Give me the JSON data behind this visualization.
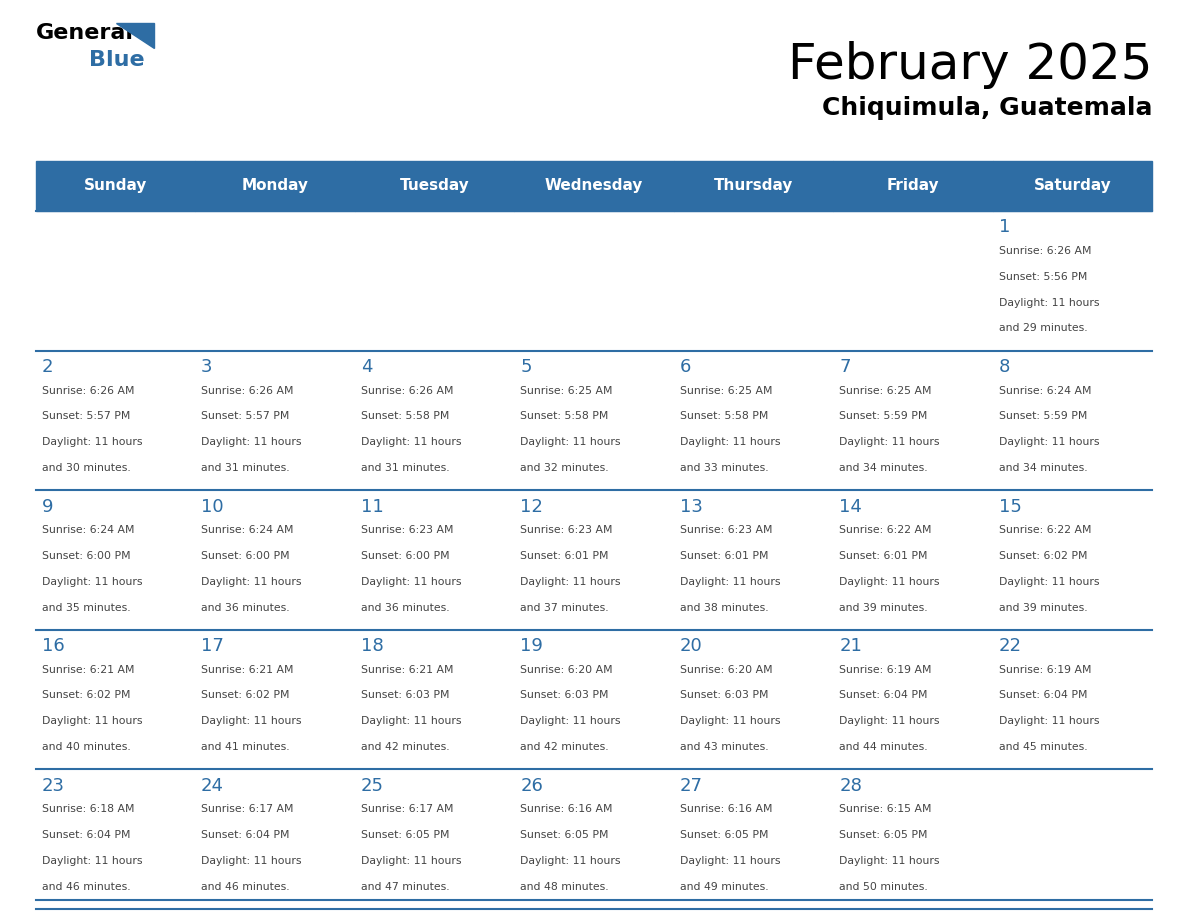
{
  "title": "February 2025",
  "subtitle": "Chiquimula, Guatemala",
  "header_bg": "#2E6DA4",
  "header_text_color": "#FFFFFF",
  "cell_bg_white": "#FFFFFF",
  "cell_bg_light": "#F0F4F8",
  "separator_color": "#2E6DA4",
  "day_number_color": "#2E6DA4",
  "info_text_color": "#444444",
  "days_of_week": [
    "Sunday",
    "Monday",
    "Tuesday",
    "Wednesday",
    "Thursday",
    "Friday",
    "Saturday"
  ],
  "weeks": [
    [
      {
        "day": null,
        "sunrise": null,
        "sunset": null,
        "daylight": null
      },
      {
        "day": null,
        "sunrise": null,
        "sunset": null,
        "daylight": null
      },
      {
        "day": null,
        "sunrise": null,
        "sunset": null,
        "daylight": null
      },
      {
        "day": null,
        "sunrise": null,
        "sunset": null,
        "daylight": null
      },
      {
        "day": null,
        "sunrise": null,
        "sunset": null,
        "daylight": null
      },
      {
        "day": null,
        "sunrise": null,
        "sunset": null,
        "daylight": null
      },
      {
        "day": 1,
        "sunrise": "6:26 AM",
        "sunset": "5:56 PM",
        "daylight": "11 hours and 29 minutes."
      }
    ],
    [
      {
        "day": 2,
        "sunrise": "6:26 AM",
        "sunset": "5:57 PM",
        "daylight": "11 hours and 30 minutes."
      },
      {
        "day": 3,
        "sunrise": "6:26 AM",
        "sunset": "5:57 PM",
        "daylight": "11 hours and 31 minutes."
      },
      {
        "day": 4,
        "sunrise": "6:26 AM",
        "sunset": "5:58 PM",
        "daylight": "11 hours and 31 minutes."
      },
      {
        "day": 5,
        "sunrise": "6:25 AM",
        "sunset": "5:58 PM",
        "daylight": "11 hours and 32 minutes."
      },
      {
        "day": 6,
        "sunrise": "6:25 AM",
        "sunset": "5:58 PM",
        "daylight": "11 hours and 33 minutes."
      },
      {
        "day": 7,
        "sunrise": "6:25 AM",
        "sunset": "5:59 PM",
        "daylight": "11 hours and 34 minutes."
      },
      {
        "day": 8,
        "sunrise": "6:24 AM",
        "sunset": "5:59 PM",
        "daylight": "11 hours and 34 minutes."
      }
    ],
    [
      {
        "day": 9,
        "sunrise": "6:24 AM",
        "sunset": "6:00 PM",
        "daylight": "11 hours and 35 minutes."
      },
      {
        "day": 10,
        "sunrise": "6:24 AM",
        "sunset": "6:00 PM",
        "daylight": "11 hours and 36 minutes."
      },
      {
        "day": 11,
        "sunrise": "6:23 AM",
        "sunset": "6:00 PM",
        "daylight": "11 hours and 36 minutes."
      },
      {
        "day": 12,
        "sunrise": "6:23 AM",
        "sunset": "6:01 PM",
        "daylight": "11 hours and 37 minutes."
      },
      {
        "day": 13,
        "sunrise": "6:23 AM",
        "sunset": "6:01 PM",
        "daylight": "11 hours and 38 minutes."
      },
      {
        "day": 14,
        "sunrise": "6:22 AM",
        "sunset": "6:01 PM",
        "daylight": "11 hours and 39 minutes."
      },
      {
        "day": 15,
        "sunrise": "6:22 AM",
        "sunset": "6:02 PM",
        "daylight": "11 hours and 39 minutes."
      }
    ],
    [
      {
        "day": 16,
        "sunrise": "6:21 AM",
        "sunset": "6:02 PM",
        "daylight": "11 hours and 40 minutes."
      },
      {
        "day": 17,
        "sunrise": "6:21 AM",
        "sunset": "6:02 PM",
        "daylight": "11 hours and 41 minutes."
      },
      {
        "day": 18,
        "sunrise": "6:21 AM",
        "sunset": "6:03 PM",
        "daylight": "11 hours and 42 minutes."
      },
      {
        "day": 19,
        "sunrise": "6:20 AM",
        "sunset": "6:03 PM",
        "daylight": "11 hours and 42 minutes."
      },
      {
        "day": 20,
        "sunrise": "6:20 AM",
        "sunset": "6:03 PM",
        "daylight": "11 hours and 43 minutes."
      },
      {
        "day": 21,
        "sunrise": "6:19 AM",
        "sunset": "6:04 PM",
        "daylight": "11 hours and 44 minutes."
      },
      {
        "day": 22,
        "sunrise": "6:19 AM",
        "sunset": "6:04 PM",
        "daylight": "11 hours and 45 minutes."
      }
    ],
    [
      {
        "day": 23,
        "sunrise": "6:18 AM",
        "sunset": "6:04 PM",
        "daylight": "11 hours and 46 minutes."
      },
      {
        "day": 24,
        "sunrise": "6:17 AM",
        "sunset": "6:04 PM",
        "daylight": "11 hours and 46 minutes."
      },
      {
        "day": 25,
        "sunrise": "6:17 AM",
        "sunset": "6:05 PM",
        "daylight": "11 hours and 47 minutes."
      },
      {
        "day": 26,
        "sunrise": "6:16 AM",
        "sunset": "6:05 PM",
        "daylight": "11 hours and 48 minutes."
      },
      {
        "day": 27,
        "sunrise": "6:16 AM",
        "sunset": "6:05 PM",
        "daylight": "11 hours and 49 minutes."
      },
      {
        "day": 28,
        "sunrise": "6:15 AM",
        "sunset": "6:05 PM",
        "daylight": "11 hours and 50 minutes."
      },
      {
        "day": null,
        "sunrise": null,
        "sunset": null,
        "daylight": null
      }
    ]
  ]
}
